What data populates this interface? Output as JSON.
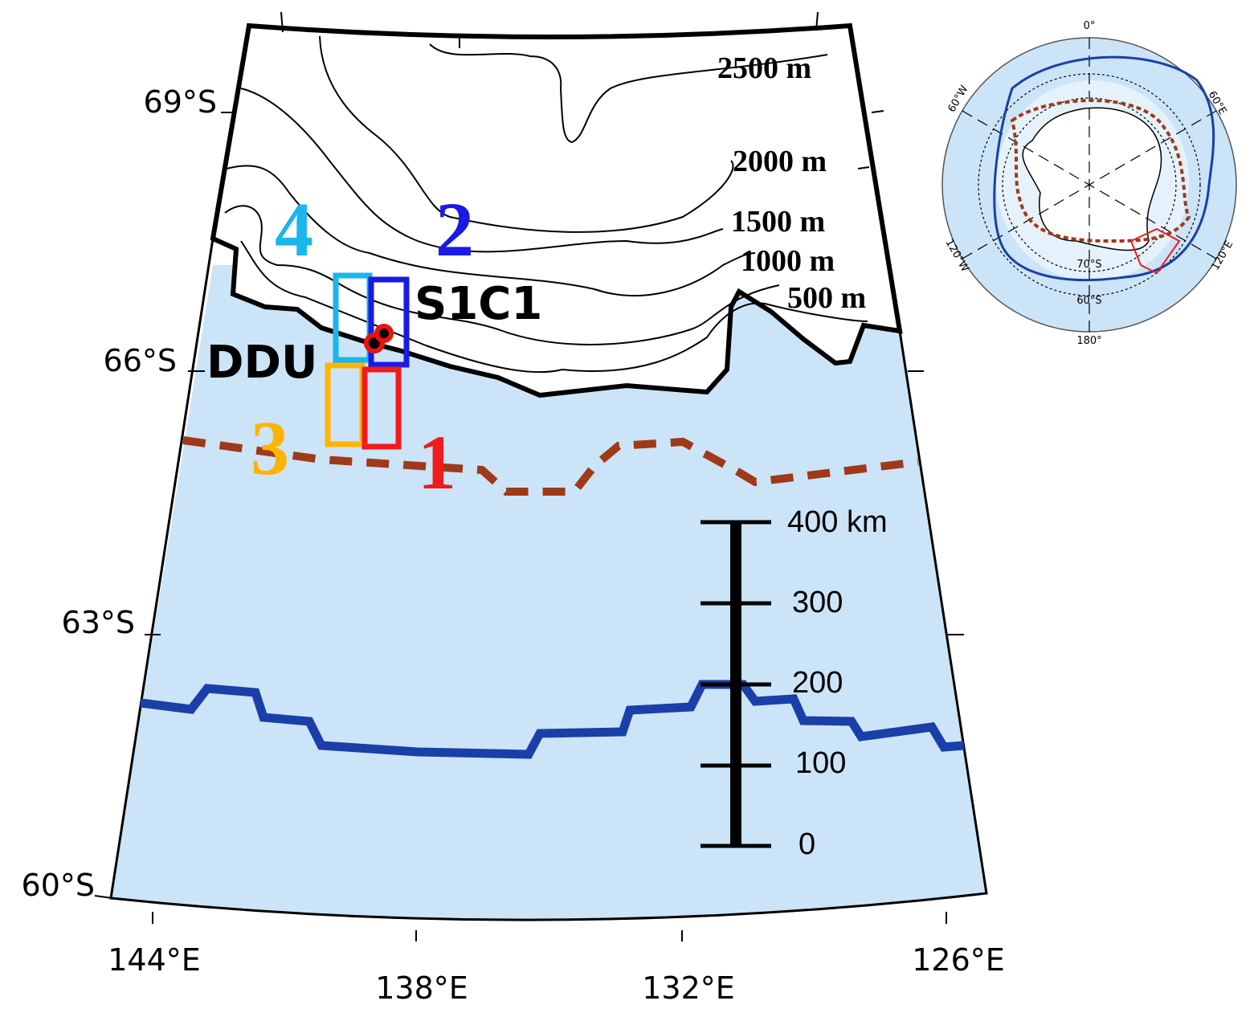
{
  "map": {
    "lat_labels": [
      "69°S",
      "66°S",
      "63°S",
      "60°S"
    ],
    "lon_labels": [
      "144°E",
      "138°E",
      "132°E",
      "126°E"
    ],
    "contour_labels": [
      "2500 m",
      "2000 m",
      "1500 m",
      "1000 m",
      "500 m"
    ],
    "region_labels": [
      "1",
      "2",
      "3",
      "4"
    ],
    "station_labels": [
      "DDU",
      "S1C1"
    ],
    "scale_bar": [
      "0",
      "100",
      "200",
      "300",
      "400 km"
    ]
  },
  "inset": {
    "lon_labels": [
      "0°",
      "60°E",
      "120°E",
      "180°",
      "120°W",
      "60°W"
    ],
    "lat_labels": [
      "70°S",
      "60°S"
    ]
  }
}
